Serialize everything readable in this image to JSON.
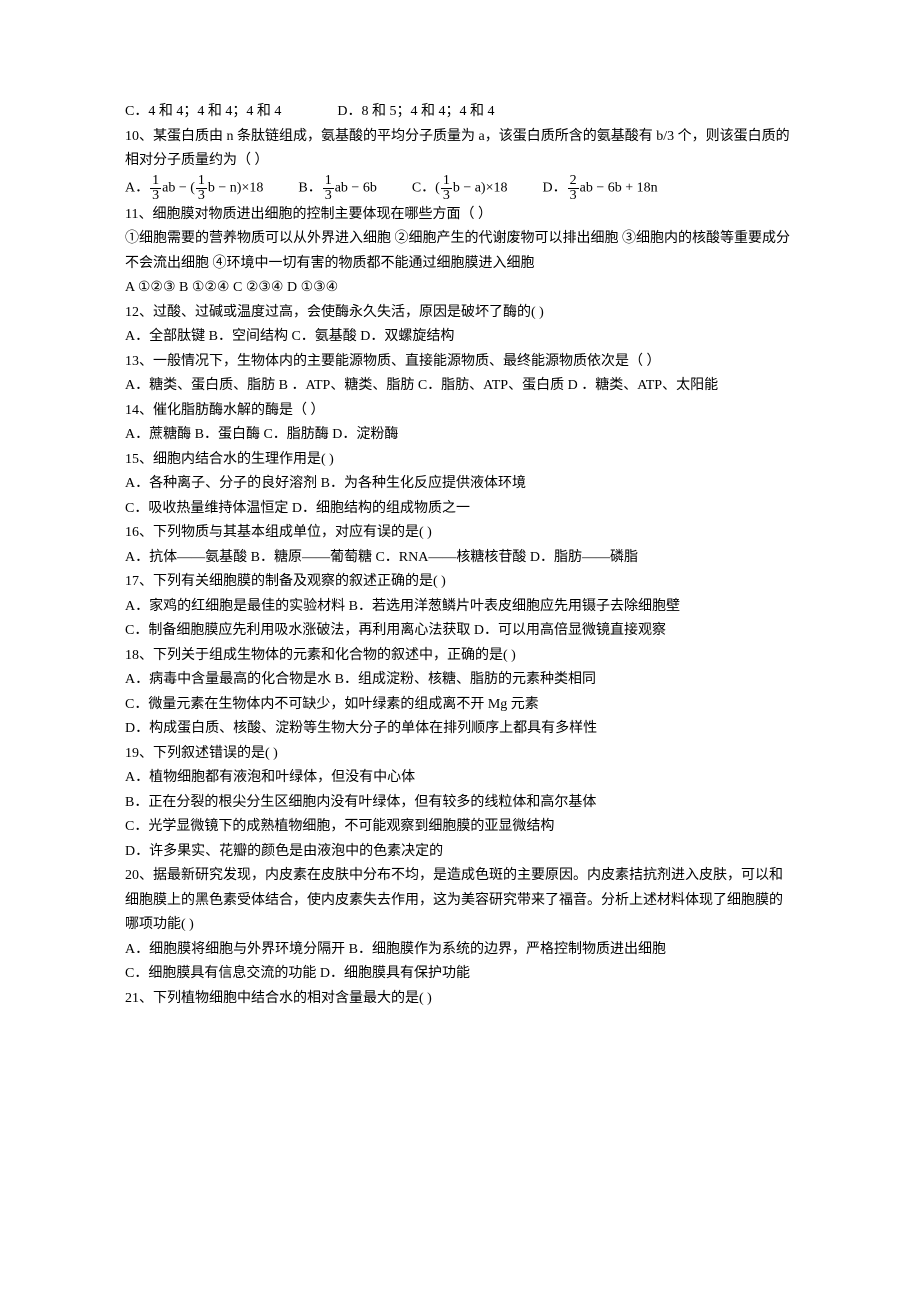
{
  "q9": {
    "optC": "C．4 和 4；4 和 4；4 和 4",
    "optD": "D．8 和 5；4 和 4；4 和 4"
  },
  "q10": {
    "stem": "10、某蛋白质由 n 条肽链组成，氨基酸的平均分子质量为 a，该蛋白质所含的氨基酸有 b/3 个，则该蛋白质的相对分子质量约为（    ）",
    "pre1": "A．",
    "mid1": "ab − (",
    "post1": "b − n)×18",
    "pre2": "B．",
    "post2": "ab − 6b",
    "pre3": "C．(",
    "post3": "b − a)×18",
    "pre4": "D．",
    "post4": "ab − 6b + 18n"
  },
  "q11": {
    "stem": "11、细胞膜对物质进出细胞的控制主要体现在哪些方面（    ）",
    "line2": "①细胞需要的营养物质可以从外界进入细胞  ②细胞产生的代谢废物可以排出细胞  ③细胞内的核酸等重要成分不会流出细胞  ④环境中一切有害的物质都不能通过细胞膜进入细胞",
    "opts": "A ①②③       B ①②④     C ②③④   D ①③④"
  },
  "q12": {
    "stem": "12、过酸、过碱或温度过高，会使酶永久失活，原因是破坏了酶的(    )",
    "opts": "A．全部肽键      B．空间结构     C．氨基酸      D．双螺旋结构"
  },
  "q13": {
    "stem": "13、一般情况下，生物体内的主要能源物质、直接能源物质、最终能源物质依次是（    ）",
    "opts": "A．糖类、蛋白质、脂肪  B ．ATP、糖类、脂肪 C．脂肪、ATP、蛋白质   D ．糖类、ATP、太阳能"
  },
  "q14": {
    "stem": "14、催化脂肪酶水解的酶是（     ）",
    "opts": "A．蔗糖酶          B．蛋白酶       C．脂肪酶         D．淀粉酶"
  },
  "q15": {
    "stem": "15、细胞内结合水的生理作用是(    )",
    "line1": "A．各种离子、分子的良好溶剂          B．为各种生化反应提供液体环境",
    "line2": "C．吸收热量维持体温恒定              D．细胞结构的组成物质之一"
  },
  "q16": {
    "stem": "16、下列物质与其基本组成单位，对应有误的是(    )",
    "opts": "A．抗体——氨基酸      B．糖原——葡萄糖      C．RNA——核糖核苷酸  D．脂肪——磷脂"
  },
  "q17": {
    "stem": "17、下列有关细胞膜的制备及观察的叙述正确的是(    )",
    "line1": "A．家鸡的红细胞是最佳的实验材料       B．若选用洋葱鳞片叶表皮细胞应先用镊子去除细胞壁",
    "line2": "C．制备细胞膜应先利用吸水涨破法，再利用离心法获取        D．可以用高倍显微镜直接观察"
  },
  "q18": {
    "stem": "18、下列关于组成生物体的元素和化合物的叙述中，正确的是(    )",
    "a": "A．病毒中含量最高的化合物是水       B．组成淀粉、核糖、脂肪的元素种类相同",
    "c": "C．微量元素在生物体内不可缺少，如叶绿素的组成离不开 Mg 元素",
    "d": "D．构成蛋白质、核酸、淀粉等生物大分子的单体在排列顺序上都具有多样性"
  },
  "q19": {
    "stem": "19、下列叙述错误的是(    )",
    "a": " A．植物细胞都有液泡和叶绿体，但没有中心体",
    "b": "B．正在分裂的根尖分生区细胞内没有叶绿体，但有较多的线粒体和高尔基体",
    "c": "C．光学显微镜下的成熟植物细胞，不可能观察到细胞膜的亚显微结构",
    "d": "D．许多果实、花瓣的颜色是由液泡中的色素决定的"
  },
  "q20": {
    "stem": "20、据最新研究发现，内皮素在皮肤中分布不均，是造成色斑的主要原因。内皮素拮抗剂进入皮肤，可以和细胞膜上的黑色素受体结合，使内皮素失去作用，这为美容研究带来了福音。分析上述材料体现了细胞膜的哪项功能(    )",
    "line1": "A．细胞膜将细胞与外界环境分隔开       B．细胞膜作为系统的边界，严格控制物质进出细胞",
    "line2": "C．细胞膜具有信息交流的功能         D．细胞膜具有保护功能"
  },
  "q21": {
    "stem": "21、下列植物细胞中结合水的相对含量最大的是(    )"
  }
}
